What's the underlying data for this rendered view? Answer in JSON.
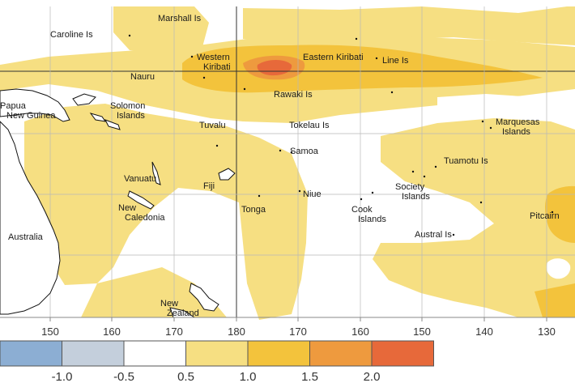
{
  "colors": {
    "ocean": "#ffffff",
    "band_0_5_1_0": "#f6df82",
    "band_1_0_1_5": "#f3c33c",
    "band_1_5_2_0": "#ee9a3e",
    "band_2_0_plus": "#e7693a",
    "band_neg_0_5": "#c4cfdc",
    "band_neg_1_0": "#8caed3",
    "coast": "#111111",
    "gridline": "#b8b8b8",
    "meridian_180": "#333333"
  },
  "places": [
    {
      "id": "marshall",
      "lines": [
        "Marshall Is"
      ]
    },
    {
      "id": "caroline",
      "lines": [
        "Caroline Is"
      ]
    },
    {
      "id": "western-kiribati",
      "lines": [
        "Western",
        "Kiribati"
      ]
    },
    {
      "id": "eastern-kiribati",
      "lines": [
        "Eastern Kiribati"
      ]
    },
    {
      "id": "line-is",
      "lines": [
        "Line Is"
      ]
    },
    {
      "id": "nauru",
      "lines": [
        "Nauru"
      ]
    },
    {
      "id": "png",
      "lines": [
        "Papua",
        "New Guinea"
      ]
    },
    {
      "id": "solomon",
      "lines": [
        "Solomon",
        "Islands"
      ]
    },
    {
      "id": "rawaki",
      "lines": [
        "Rawaki Is"
      ]
    },
    {
      "id": "tuvalu",
      "lines": [
        "Tuvalu"
      ]
    },
    {
      "id": "tokelau",
      "lines": [
        "Tokelau Is"
      ]
    },
    {
      "id": "marquesas",
      "lines": [
        "Marquesas",
        "Islands"
      ]
    },
    {
      "id": "samoa",
      "lines": [
        "Samoa"
      ]
    },
    {
      "id": "tuamotu",
      "lines": [
        "Tuamotu Is"
      ]
    },
    {
      "id": "vanuatu",
      "lines": [
        "Vanuatu"
      ]
    },
    {
      "id": "fiji",
      "lines": [
        "Fiji"
      ]
    },
    {
      "id": "niue",
      "lines": [
        "Niue"
      ]
    },
    {
      "id": "society",
      "lines": [
        "Society",
        "Islands"
      ]
    },
    {
      "id": "new-caledonia",
      "lines": [
        "New",
        "Caledonia"
      ]
    },
    {
      "id": "tonga",
      "lines": [
        "Tonga"
      ]
    },
    {
      "id": "cook",
      "lines": [
        "Cook",
        "Islands"
      ]
    },
    {
      "id": "pitcairn",
      "lines": [
        "Pitcairn"
      ]
    },
    {
      "id": "australia",
      "lines": [
        "Australia"
      ]
    },
    {
      "id": "austral",
      "lines": [
        "Austral Is"
      ]
    },
    {
      "id": "new-zealand",
      "lines": [
        "New",
        "Zealand"
      ]
    }
  ],
  "lon_ticks": [
    "150",
    "160",
    "170",
    "180",
    "170",
    "160",
    "150",
    "140",
    "130"
  ],
  "legend": {
    "labels": [
      "-1.0",
      "-0.5",
      "0.5",
      "1.0",
      "1.5",
      "2.0"
    ]
  }
}
